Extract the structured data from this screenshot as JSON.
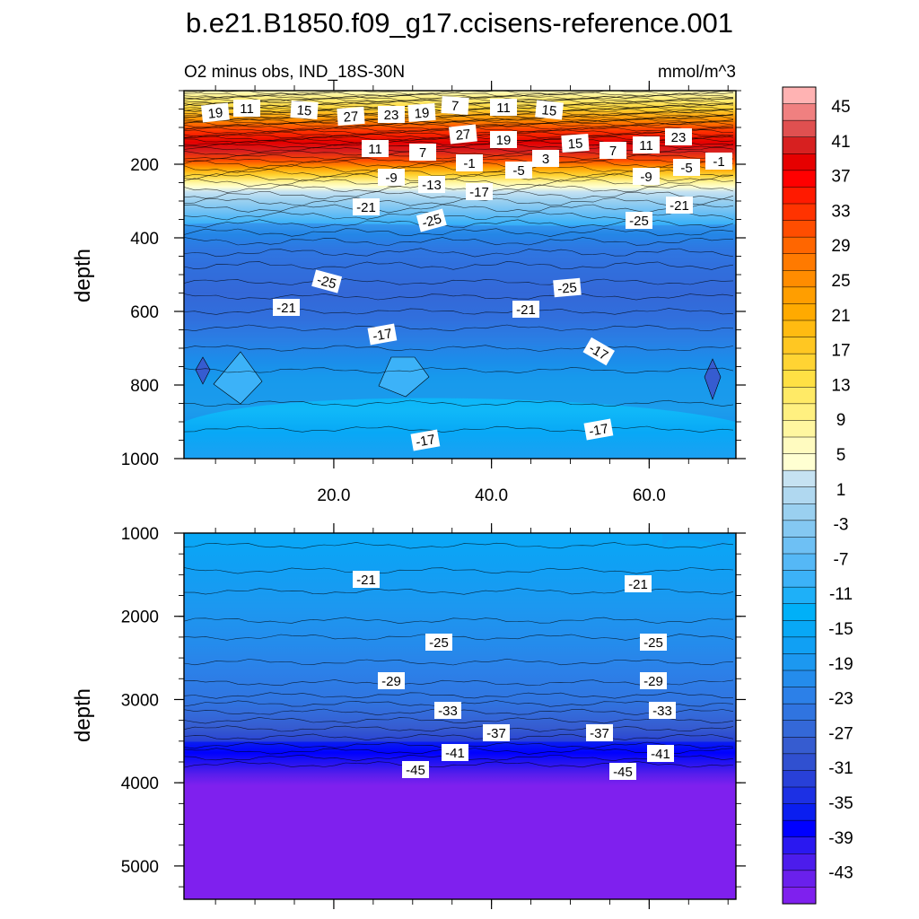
{
  "chart_data": {
    "type": "heatmap",
    "title": "b.e21.B1850.f09_g17.ccisens-reference.001",
    "subtitle": "O2 minus obs, IND_18S-30N",
    "units": "mmol/m^3",
    "colorbar": {
      "labels": [
        "45",
        "41",
        "37",
        "33",
        "29",
        "25",
        "21",
        "17",
        "13",
        "9",
        "5",
        "1",
        "-3",
        "-7",
        "-11",
        "-15",
        "-19",
        "-23",
        "-27",
        "-31",
        "-35",
        "-39",
        "-43"
      ],
      "colors": [
        "#FFB3B3",
        "#F08080",
        "#E05050",
        "#D72020",
        "#E60000",
        "#FF0000",
        "#FF1A00",
        "#FF3300",
        "#FF4D00",
        "#FF6600",
        "#FF7A00",
        "#FF8C00",
        "#FF9E00",
        "#FFAA00",
        "#FFBB11",
        "#FFC722",
        "#FFD433",
        "#FFE044",
        "#FFEA66",
        "#FFF080",
        "#FFF6A0",
        "#FFFBC0",
        "#FFFFD2",
        "#C6E2F2",
        "#B0D8F0",
        "#9AD0F0",
        "#84C8F2",
        "#6EC0F4",
        "#55B8F6",
        "#3CB2F8",
        "#1EB0F8",
        "#00B0F8",
        "#08A8F6",
        "#10A0F4",
        "#1C98F0",
        "#248CEC",
        "#2C80E8",
        "#3074E0",
        "#3468D8",
        "#365CD0",
        "#3050D0",
        "#2840D8",
        "#1C30E4",
        "#0A1EF0",
        "#0000FF",
        "#2A18F0",
        "#4C1CEC",
        "#6A20EC",
        "#7F20EE"
      ]
    },
    "panels": [
      {
        "name": "upper",
        "ylabel": "depth",
        "ylim": [
          0,
          1000
        ],
        "yticks": [
          "200",
          "400",
          "600",
          "800",
          "1000"
        ],
        "xlim": [
          1,
          71
        ],
        "xticks": [
          "20.0",
          "40.0",
          "60.0"
        ],
        "contour_labels": [
          "19",
          "11",
          "15",
          "27",
          "23",
          "19",
          "7",
          "11",
          "15",
          "27",
          "19",
          "15",
          "7",
          "11",
          "23",
          "11",
          "7",
          "-1",
          "-5",
          "3",
          "-9",
          "-5",
          "-1",
          "-9",
          "-13",
          "-17",
          "-21",
          "-21",
          "-25",
          "-25",
          "-25",
          "-25",
          "-21",
          "-21",
          "-17",
          "-17",
          "-17",
          "-17"
        ]
      },
      {
        "name": "lower",
        "ylabel": "depth",
        "ylim": [
          1000,
          5400
        ],
        "yticks": [
          "1000",
          "2000",
          "3000",
          "4000",
          "5000"
        ],
        "contour_labels": [
          "-21",
          "-21",
          "-25",
          "-25",
          "-29",
          "-29",
          "-33",
          "-33",
          "-37",
          "-37",
          "-41",
          "-41",
          "-45",
          "-45"
        ]
      }
    ]
  }
}
